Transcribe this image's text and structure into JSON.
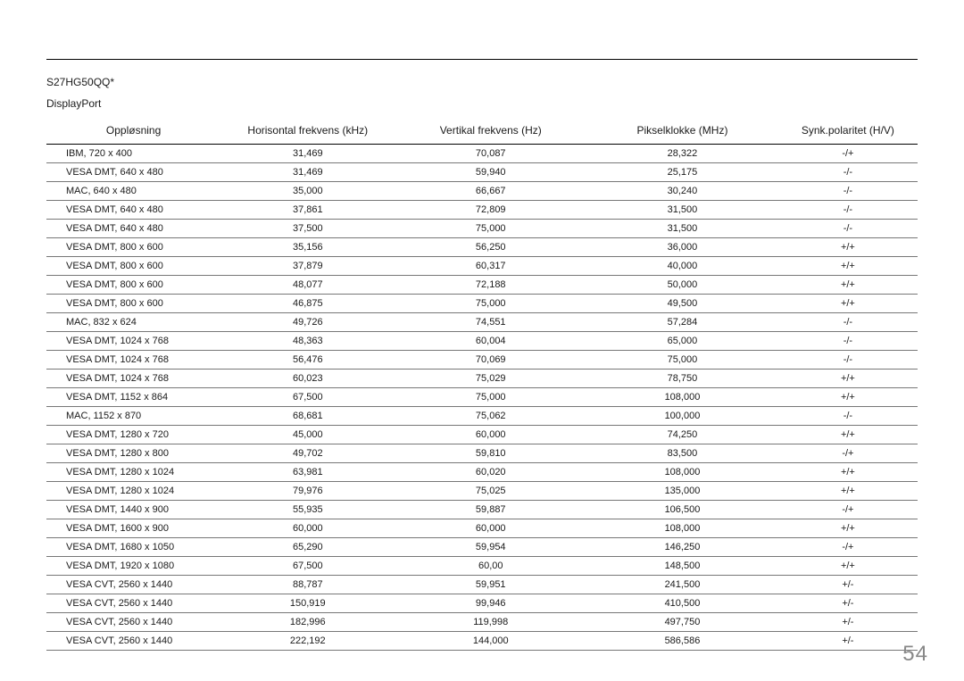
{
  "model": "S27HG50QQ*",
  "port": "DisplayPort",
  "page_number": "54",
  "table": {
    "columns": [
      "Oppløsning",
      "Horisontal frekvens (kHz)",
      "Vertikal frekvens (Hz)",
      "Pikselklokke (MHz)",
      "Synk.polaritet (H/V)"
    ],
    "rows": [
      [
        "IBM, 720 x 400",
        "31,469",
        "70,087",
        "28,322",
        "-/+"
      ],
      [
        "VESA DMT, 640 x 480",
        "31,469",
        "59,940",
        "25,175",
        "-/-"
      ],
      [
        "MAC, 640 x 480",
        "35,000",
        "66,667",
        "30,240",
        "-/-"
      ],
      [
        "VESA DMT, 640 x 480",
        "37,861",
        "72,809",
        "31,500",
        "-/-"
      ],
      [
        "VESA DMT, 640 x 480",
        "37,500",
        "75,000",
        "31,500",
        "-/-"
      ],
      [
        "VESA DMT, 800 x 600",
        "35,156",
        "56,250",
        "36,000",
        "+/+"
      ],
      [
        "VESA DMT, 800 x 600",
        "37,879",
        "60,317",
        "40,000",
        "+/+"
      ],
      [
        "VESA DMT, 800 x 600",
        "48,077",
        "72,188",
        "50,000",
        "+/+"
      ],
      [
        "VESA DMT, 800 x 600",
        "46,875",
        "75,000",
        "49,500",
        "+/+"
      ],
      [
        "MAC, 832 x 624",
        "49,726",
        "74,551",
        "57,284",
        "-/-"
      ],
      [
        "VESA DMT, 1024 x 768",
        "48,363",
        "60,004",
        "65,000",
        "-/-"
      ],
      [
        "VESA DMT, 1024 x 768",
        "56,476",
        "70,069",
        "75,000",
        "-/-"
      ],
      [
        "VESA DMT, 1024 x 768",
        "60,023",
        "75,029",
        "78,750",
        "+/+"
      ],
      [
        "VESA DMT, 1152 x 864",
        "67,500",
        "75,000",
        "108,000",
        "+/+"
      ],
      [
        "MAC, 1152 x 870",
        "68,681",
        "75,062",
        "100,000",
        "-/-"
      ],
      [
        "VESA DMT, 1280 x 720",
        "45,000",
        "60,000",
        "74,250",
        "+/+"
      ],
      [
        "VESA DMT, 1280 x 800",
        "49,702",
        "59,810",
        "83,500",
        "-/+"
      ],
      [
        "VESA DMT, 1280 x 1024",
        "63,981",
        "60,020",
        "108,000",
        "+/+"
      ],
      [
        "VESA DMT, 1280 x 1024",
        "79,976",
        "75,025",
        "135,000",
        "+/+"
      ],
      [
        "VESA DMT, 1440 x 900",
        "55,935",
        "59,887",
        "106,500",
        "-/+"
      ],
      [
        "VESA DMT, 1600 x 900",
        "60,000",
        "60,000",
        "108,000",
        "+/+"
      ],
      [
        "VESA DMT, 1680 x 1050",
        "65,290",
        "59,954",
        "146,250",
        "-/+"
      ],
      [
        "VESA DMT, 1920 x 1080",
        "67,500",
        "60,00",
        "148,500",
        "+/+"
      ],
      [
        "VESA CVT, 2560 x 1440",
        "88,787",
        "59,951",
        "241,500",
        "+/-"
      ],
      [
        "VESA CVT, 2560 x 1440",
        "150,919",
        "99,946",
        "410,500",
        "+/-"
      ],
      [
        "VESA CVT, 2560 x 1440",
        "182,996",
        "119,998",
        "497,750",
        "+/-"
      ],
      [
        "VESA CVT, 2560 x 1440",
        "222,192",
        "144,000",
        "586,586",
        "+/-"
      ]
    ]
  }
}
